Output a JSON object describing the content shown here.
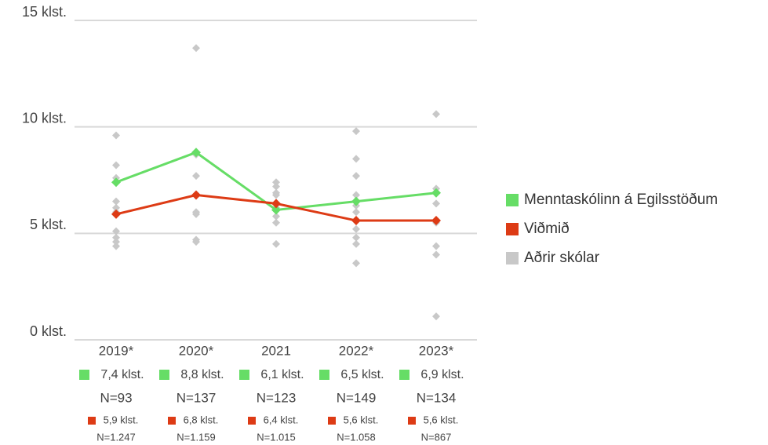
{
  "chart_data": {
    "type": "line",
    "categories": [
      "2019*",
      "2020*",
      "2021",
      "2022*",
      "2023*"
    ],
    "ylim": [
      0,
      15
    ],
    "yticks": [
      {
        "value": 0,
        "label": "0 klst."
      },
      {
        "value": 5,
        "label": "5 klst."
      },
      {
        "value": 10,
        "label": "10 klst."
      },
      {
        "value": 15,
        "label": "15 klst."
      }
    ],
    "grid": true,
    "legend": "right",
    "series": [
      {
        "name": "Menntaskólinn á Egilsstöðum",
        "color": "#66dd66",
        "values": [
          7.4,
          8.8,
          6.1,
          6.5,
          6.9
        ],
        "value_labels": [
          "7,4 klst.",
          "8,8 klst.",
          "6,1 klst.",
          "6,5 klst.",
          "6,9 klst."
        ],
        "n_labels": [
          "N=93",
          "N=137",
          "N=123",
          "N=149",
          "N=134"
        ]
      },
      {
        "name": "Viðmið",
        "color": "#dd3b15",
        "values": [
          5.9,
          6.8,
          6.4,
          5.6,
          5.6
        ],
        "value_labels": [
          "5,9 klst.",
          "6,8 klst.",
          "6,4 klst.",
          "5,6 klst.",
          "5,6 klst."
        ],
        "n_labels": [
          "N=1.247",
          "N=1.159",
          "N=1.015",
          "N=1.058",
          "N=867"
        ]
      },
      {
        "name": "Aðrir skólar",
        "color": "#c8c8c8",
        "values": [
          [
            9.6,
            8.2,
            7.6,
            6.5,
            6.2,
            6.0,
            5.1,
            4.8,
            4.6,
            4.4
          ],
          [
            13.7,
            8.7,
            7.7,
            6.0,
            5.9,
            4.7,
            4.6
          ],
          [
            7.4,
            7.2,
            6.9,
            6.8,
            6.2,
            5.8,
            5.5,
            4.5
          ],
          [
            9.8,
            8.5,
            7.7,
            6.8,
            6.3,
            6.0,
            5.2,
            4.8,
            4.5,
            3.6
          ],
          [
            10.6,
            7.1,
            6.4,
            5.5,
            4.4,
            4.0,
            1.1
          ]
        ]
      }
    ]
  }
}
